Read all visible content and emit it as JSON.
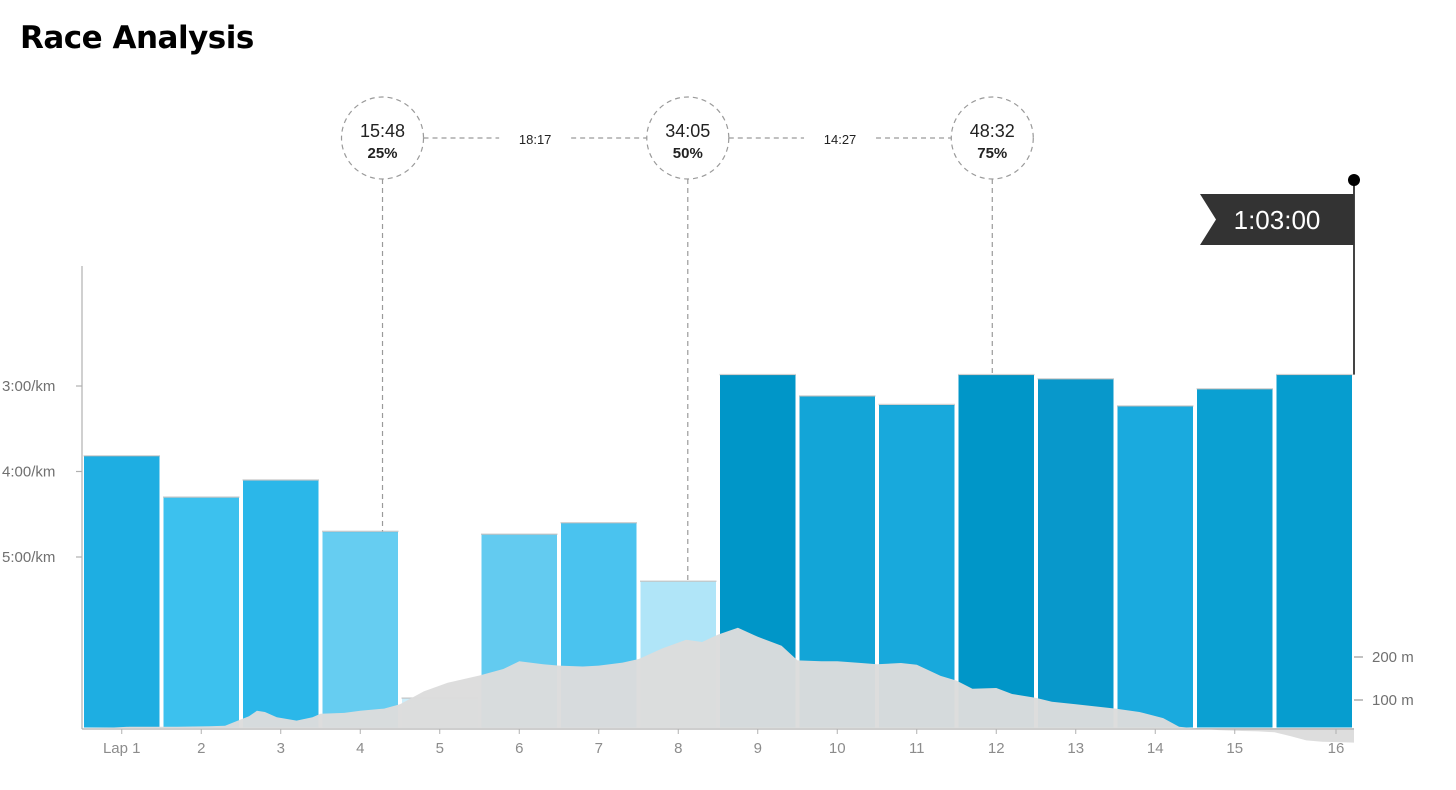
{
  "title": "Race Analysis",
  "chart_data": {
    "type": "bar",
    "categories": [
      "Lap 1",
      "2",
      "3",
      "4",
      "5",
      "6",
      "7",
      "8",
      "9",
      "10",
      "11",
      "12",
      "13",
      "14",
      "15",
      "16"
    ],
    "series": [
      {
        "values_seconds_per_km": [
          229,
          258,
          246,
          282,
          399,
          284,
          276,
          317,
          172,
          187,
          193,
          172,
          175,
          194,
          182,
          172
        ]
      }
    ],
    "bar_colors": [
      "#1eaee2",
      "#3cc1ee",
      "#2bb7e9",
      "#66cdf1",
      "#cdeefb",
      "#63cbf0",
      "#4ac3ef",
      "#b0e5f8",
      "#0096c8",
      "#13a5d7",
      "#18a9dc",
      "#0096c8",
      "#0898cb",
      "#1aaade",
      "#0ba0d2",
      "#069dcf"
    ],
    "y_axis": {
      "ticks": [
        {
          "label": "3:00/km",
          "value_seconds_per_km": 180
        },
        {
          "label": "4:00/km",
          "value_seconds_per_km": 240
        },
        {
          "label": "5:00/km",
          "value_seconds_per_km": 300
        }
      ],
      "inverted": true
    },
    "elevation": {
      "unit": "m",
      "ticks": [
        {
          "label": "200 m",
          "value": 200
        },
        {
          "label": "100 m",
          "value": 100
        }
      ],
      "fill_color": "#dcdcdc",
      "profile": [
        [
          0,
          35
        ],
        [
          0.4,
          36
        ],
        [
          0.6,
          38
        ],
        [
          1,
          38
        ],
        [
          1.2,
          38
        ],
        [
          1.6,
          39
        ],
        [
          1.8,
          40
        ],
        [
          2,
          55
        ],
        [
          2.1,
          62
        ],
        [
          2.2,
          75
        ],
        [
          2.3,
          72
        ],
        [
          2.45,
          60
        ],
        [
          2.7,
          52
        ],
        [
          2.9,
          60
        ],
        [
          3,
          68
        ],
        [
          3.3,
          70
        ],
        [
          3.5,
          75
        ],
        [
          3.8,
          80
        ],
        [
          4,
          90
        ],
        [
          4.3,
          120
        ],
        [
          4.6,
          140
        ],
        [
          5,
          157
        ],
        [
          5.3,
          172
        ],
        [
          5.5,
          190
        ],
        [
          5.8,
          183
        ],
        [
          6,
          180
        ],
        [
          6.3,
          178
        ],
        [
          6.5,
          180
        ],
        [
          6.8,
          187
        ],
        [
          7,
          195
        ],
        [
          7.3,
          220
        ],
        [
          7.6,
          240
        ],
        [
          7.8,
          235
        ],
        [
          8,
          252
        ],
        [
          8.25,
          268
        ],
        [
          8.5,
          247
        ],
        [
          8.8,
          226
        ],
        [
          9,
          192
        ],
        [
          9.3,
          190
        ],
        [
          9.5,
          190
        ],
        [
          9.8,
          186
        ],
        [
          10,
          183
        ],
        [
          10.3,
          186
        ],
        [
          10.5,
          182
        ],
        [
          10.8,
          156
        ],
        [
          11,
          145
        ],
        [
          11.2,
          126
        ],
        [
          11.5,
          128
        ],
        [
          11.7,
          114
        ],
        [
          12,
          105
        ],
        [
          12.2,
          96
        ],
        [
          12.5,
          90
        ],
        [
          12.8,
          84
        ],
        [
          13,
          80
        ],
        [
          13.3,
          72
        ],
        [
          13.6,
          58
        ],
        [
          13.8,
          38
        ],
        [
          14,
          34
        ],
        [
          14.3,
          30
        ],
        [
          14.6,
          28
        ],
        [
          14.8,
          27
        ],
        [
          15,
          25
        ],
        [
          15.2,
          16
        ],
        [
          15.4,
          6
        ],
        [
          15.6,
          3
        ],
        [
          15.8,
          2
        ],
        [
          16,
          1
        ]
      ]
    },
    "milestones": [
      {
        "time": "15:48",
        "percent": "25%",
        "lap_position": 3.78
      },
      {
        "time": "34:05",
        "percent": "50%",
        "lap_position": 7.62
      },
      {
        "time": "48:32",
        "percent": "75%",
        "lap_position": 11.45
      }
    ],
    "splits": [
      {
        "label": "18:17",
        "between": [
          0,
          1
        ]
      },
      {
        "label": "14:27",
        "between": [
          1,
          2
        ]
      }
    ],
    "finish": {
      "label": "1:03:00"
    }
  }
}
